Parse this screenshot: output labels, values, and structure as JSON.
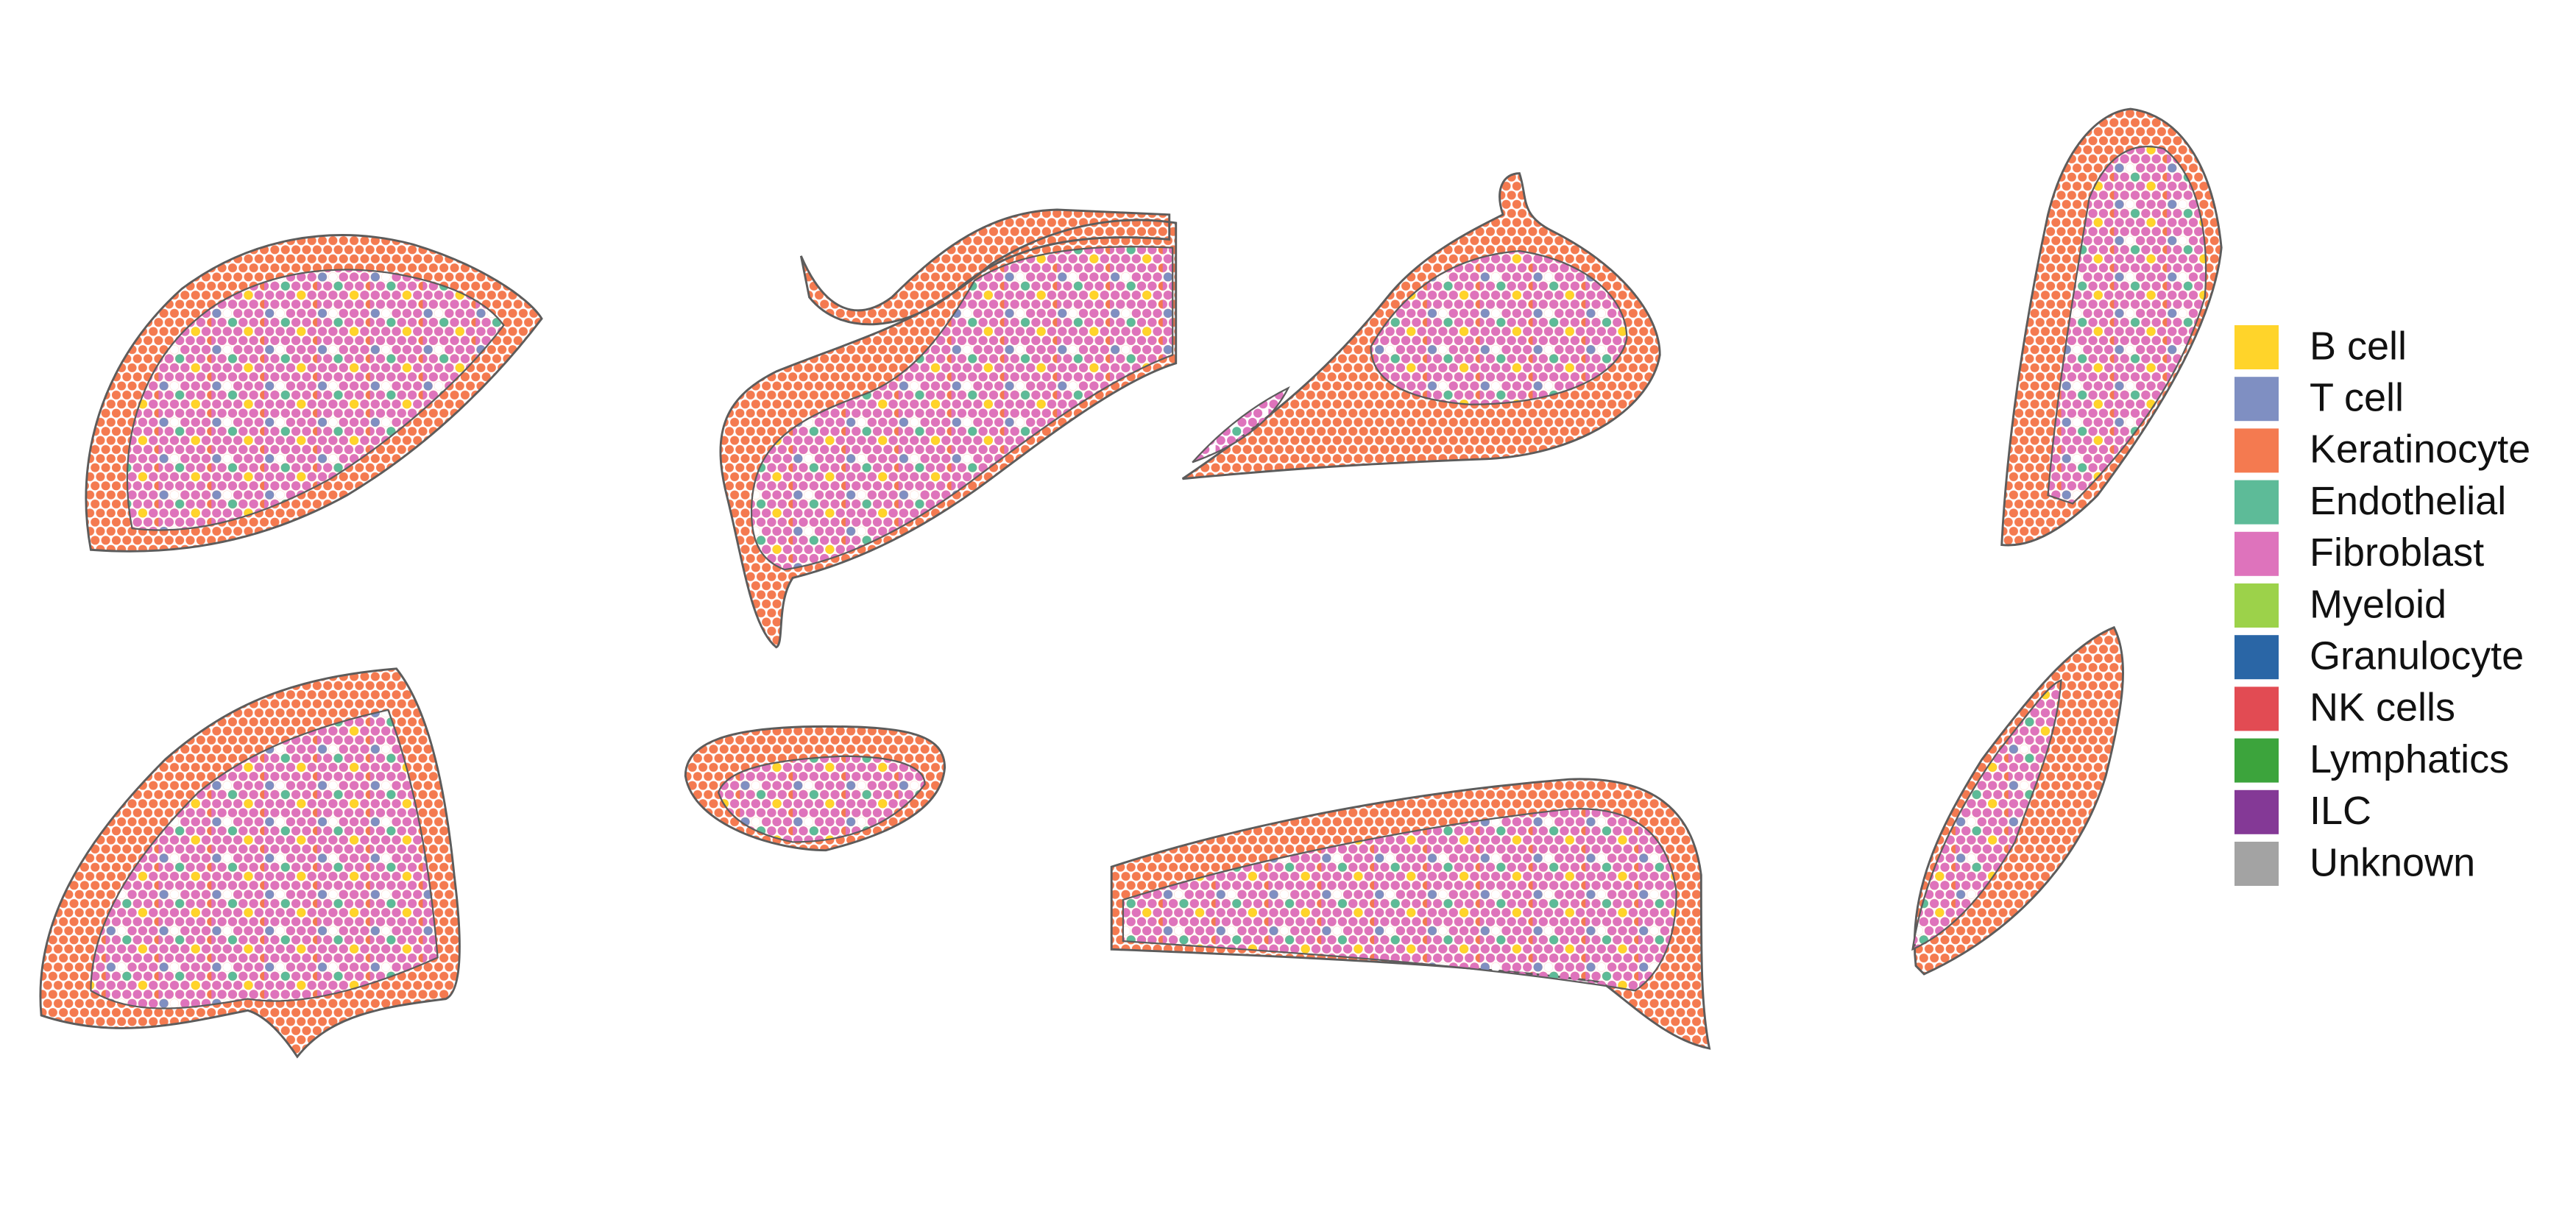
{
  "legend": {
    "items": [
      {
        "label": "B cell",
        "color": "#FFD42A"
      },
      {
        "label": "T cell",
        "color": "#7F8FC2"
      },
      {
        "label": "Keratinocyte",
        "color": "#F47A50"
      },
      {
        "label": "Endothelial",
        "color": "#5DBB98"
      },
      {
        "label": "Fibroblast",
        "color": "#DE73BC"
      },
      {
        "label": "Myeloid",
        "color": "#9CD24A"
      },
      {
        "label": "Granulocyte",
        "color": "#2A66A6"
      },
      {
        "label": "NK cells",
        "color": "#E24B53"
      },
      {
        "label": "Lymphatics",
        "color": "#3CA43C"
      },
      {
        "label": "ILC",
        "color": "#843996"
      },
      {
        "label": "Unknown",
        "color": "#A3A3A3"
      }
    ]
  }
}
